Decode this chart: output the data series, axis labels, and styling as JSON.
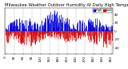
{
  "title": "Milwaukee Weather Outdoor Humidity At Daily High Temperature (Past Year)",
  "background_color": "#ffffff",
  "plot_bg_color": "#ffffff",
  "grid_color": "#888888",
  "bar_color_blue": "#0000dd",
  "bar_color_red": "#dd0000",
  "n_days": 365,
  "ylim": [
    -55,
    55
  ],
  "yticks": [
    -40,
    -20,
    0,
    20,
    40
  ],
  "ytick_labels": [
    "-40",
    "-20",
    "0",
    "20",
    "40"
  ],
  "grid_interval": 30,
  "tick_fontsize": 3.0,
  "title_fontsize": 3.8,
  "legend_blue_label": "High",
  "legend_red_label": "Low"
}
